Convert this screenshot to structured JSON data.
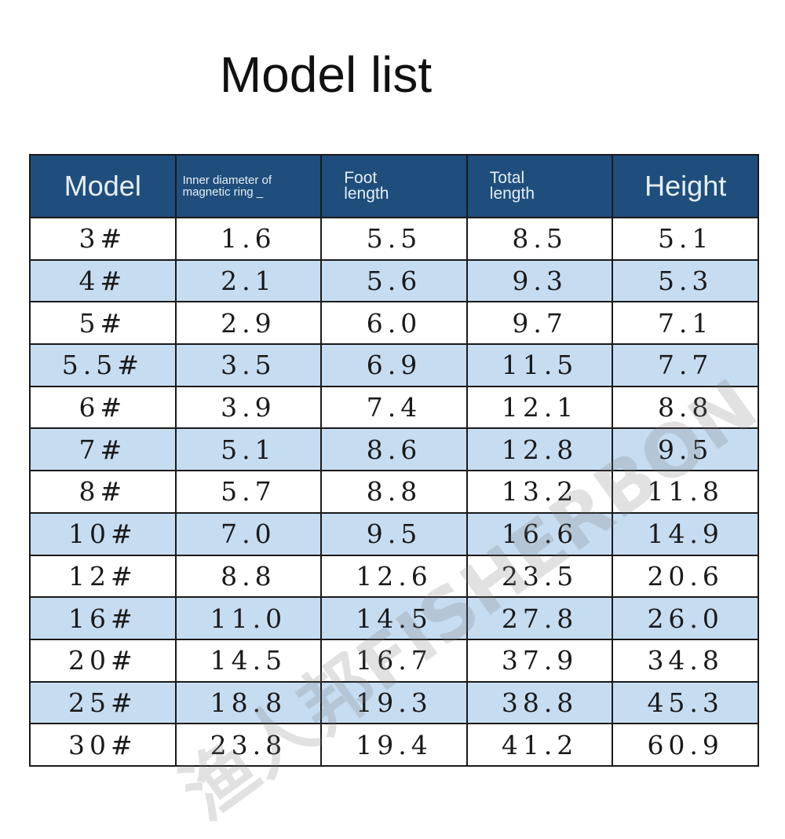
{
  "title": "Model list",
  "table": {
    "headers": [
      "Model",
      "Inner diameter of magnetic ring _",
      "Foot length",
      "Total length",
      "Height"
    ],
    "rows": [
      [
        "3#",
        "1.6",
        "5.5",
        "8.5",
        "5.1"
      ],
      [
        "4#",
        "2.1",
        "5.6",
        "9.3",
        "5.3"
      ],
      [
        "5#",
        "2.9",
        "6.0",
        "9.7",
        "7.1"
      ],
      [
        "5.5#",
        "3.5",
        "6.9",
        "11.5",
        "7.7"
      ],
      [
        "6#",
        "3.9",
        "7.4",
        "12.1",
        "8.8"
      ],
      [
        "7#",
        "5.1",
        "8.6",
        "12.8",
        "9.5"
      ],
      [
        "8#",
        "5.7",
        "8.8",
        "13.2",
        "11.8"
      ],
      [
        "10#",
        "7.0",
        "9.5",
        "16.6",
        "14.9"
      ],
      [
        "12#",
        "8.8",
        "12.6",
        "23.5",
        "20.6"
      ],
      [
        "16#",
        "11.0",
        "14.5",
        "27.8",
        "26.0"
      ],
      [
        "20#",
        "14.5",
        "16.7",
        "37.9",
        "34.8"
      ],
      [
        "25#",
        "18.8",
        "19.3",
        "38.8",
        "45.3"
      ],
      [
        "30#",
        "23.8",
        "19.4",
        "41.2",
        "60.9"
      ]
    ]
  },
  "watermark": "渔人邦FISHERBON",
  "colors": {
    "header_bg": "#1f4e7c",
    "alt_row_bg": "#c6dcf1"
  }
}
